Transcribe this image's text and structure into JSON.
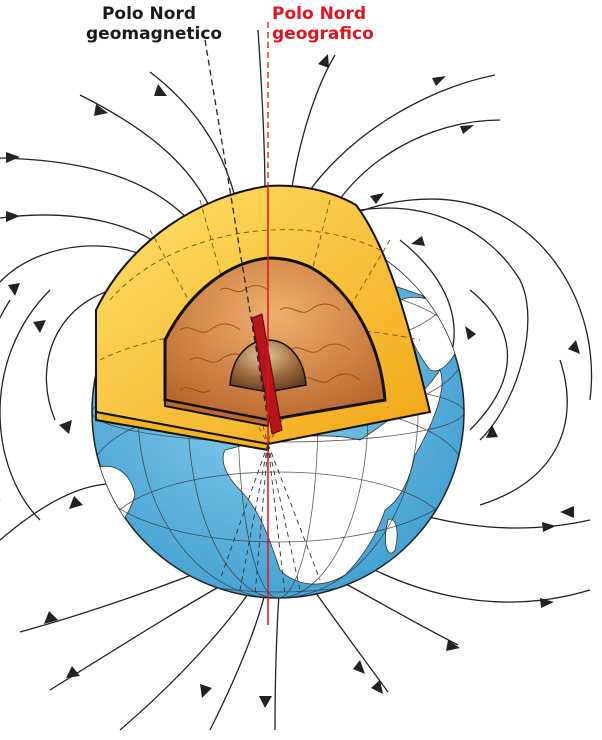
{
  "labels": {
    "geomagnetic_line1": "Polo Nord",
    "geomagnetic_line2": "geomagnetico",
    "geographic_line1": "Polo Nord",
    "geographic_line2": "geografico"
  },
  "colors": {
    "ocean": "#5fb6e0",
    "land": "#ffffff",
    "mantle": "#f5b21c",
    "mantle_light": "#ffd84a",
    "outer_core": "#c8763a",
    "inner_core": "#8a5a32",
    "magnetic_axis": "#b8141c",
    "geographic_axis": "#e0141e",
    "field_line": "#222222"
  },
  "icons": {
    "field_arrow": "triangle-arrow"
  }
}
